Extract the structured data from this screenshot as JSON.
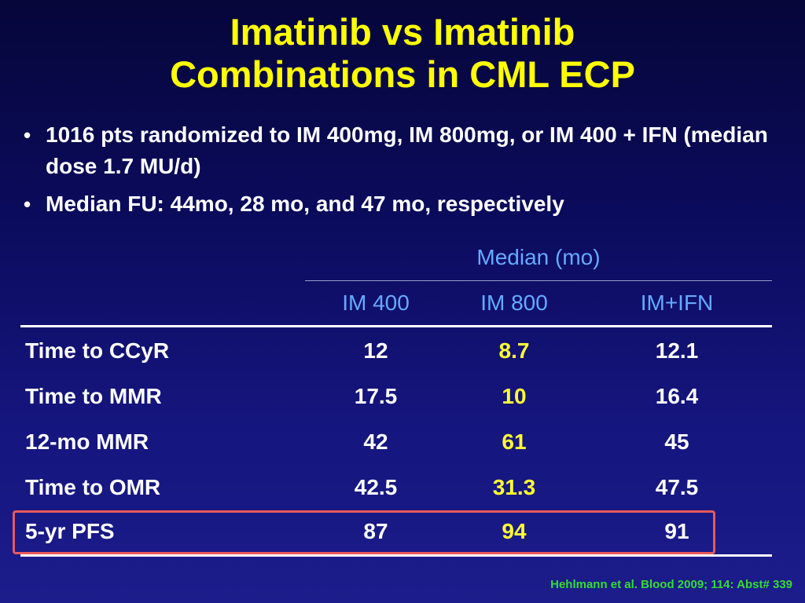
{
  "title": {
    "line1": "Imatinib vs Imatinib",
    "line2": "Combinations in CML ECP"
  },
  "bullets": [
    "1016 pts randomized to IM 400mg, IM 800mg, or IM 400 + IFN (median dose 1.7 MU/d)",
    "Median FU: 44mo, 28 mo, and 47 mo, respectively"
  ],
  "table": {
    "group_header": "Median (mo)",
    "columns": [
      "IM 400",
      "IM 800",
      "IM+IFN"
    ],
    "rows": [
      {
        "label": "Time to CCyR",
        "values": [
          "12",
          "8.7",
          "12.1"
        ]
      },
      {
        "label": "Time to MMR",
        "values": [
          "17.5",
          "10",
          "16.4"
        ]
      },
      {
        "label": "12-mo MMR",
        "values": [
          "42",
          "61",
          "45"
        ]
      },
      {
        "label": "Time to OMR",
        "values": [
          "42.5",
          "31.3",
          "47.5"
        ]
      },
      {
        "label": "5-yr PFS",
        "values": [
          "87",
          "94",
          "91"
        ]
      }
    ],
    "highlighted_column": "IM 800",
    "boxed_row": "5-yr PFS"
  },
  "reference": "Hehlmann et al. Blood 2009; 114: Abst# 339",
  "colors": {
    "title": "#ffff00",
    "header": "#66aaff",
    "highlight": "#ffff33",
    "box": "#e85a5a",
    "reference": "#33dd33"
  }
}
